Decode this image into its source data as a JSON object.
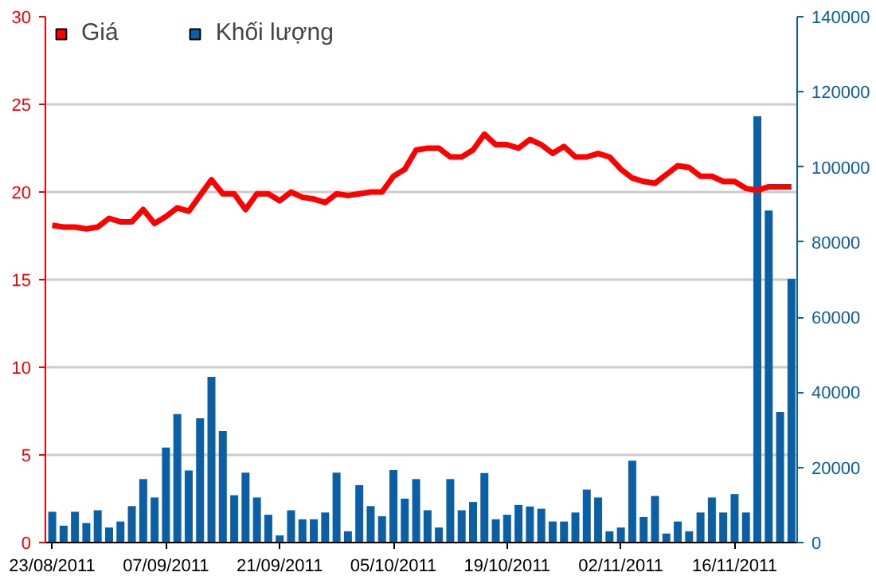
{
  "chart_data": {
    "type": "bar",
    "categories": [
      "23/08/2011",
      null,
      null,
      null,
      null,
      null,
      null,
      null,
      null,
      null,
      "07/09/2011",
      null,
      null,
      null,
      null,
      null,
      null,
      null,
      null,
      null,
      "21/09/2011",
      null,
      null,
      null,
      null,
      null,
      null,
      null,
      null,
      null,
      "05/10/2011",
      null,
      null,
      null,
      null,
      null,
      null,
      null,
      null,
      null,
      "19/10/2011",
      null,
      null,
      null,
      null,
      null,
      null,
      null,
      null,
      null,
      "02/11/2011",
      null,
      null,
      null,
      null,
      null,
      null,
      null,
      null,
      null,
      "16/11/2011",
      null,
      null,
      null,
      null,
      null
    ],
    "series": [
      {
        "name": "Giá",
        "type": "line",
        "axis": "y",
        "color": "#ff0000",
        "values": [
          18.1,
          18.0,
          18.0,
          17.9,
          18.0,
          18.5,
          18.3,
          18.3,
          19.0,
          18.2,
          18.6,
          19.1,
          18.9,
          19.8,
          20.7,
          19.9,
          19.9,
          19.0,
          19.9,
          19.9,
          19.5,
          20.0,
          19.7,
          19.6,
          19.4,
          19.9,
          19.8,
          19.9,
          20.0,
          20.0,
          20.9,
          21.3,
          22.4,
          22.5,
          22.5,
          22.0,
          22.0,
          22.4,
          23.3,
          22.7,
          22.7,
          22.5,
          23.0,
          22.7,
          22.2,
          22.6,
          22.0,
          22.0,
          22.2,
          22.0,
          21.3,
          20.8,
          20.6,
          20.5,
          21.0,
          21.5,
          21.4,
          20.9,
          20.9,
          20.6,
          20.6,
          20.2,
          20.1,
          20.3,
          20.3,
          20.3
        ]
      },
      {
        "name": "Khối lượng",
        "axis": "y2",
        "color": "#0b5fa5",
        "values": [
          8200,
          4500,
          8200,
          5200,
          8600,
          4000,
          5600,
          9700,
          16900,
          12000,
          25300,
          34200,
          19200,
          33100,
          44100,
          29700,
          12600,
          18600,
          12000,
          7400,
          1900,
          8600,
          6200,
          6200,
          8000,
          18600,
          3000,
          15300,
          9700,
          7000,
          19300,
          11700,
          16900,
          8600,
          4000,
          16900,
          8600,
          10800,
          18500,
          6200,
          7400,
          10000,
          9600,
          9000,
          5600,
          5600,
          8000,
          14100,
          12000,
          3000,
          4000,
          21800,
          6800,
          12400,
          2400,
          5600,
          3000,
          8000,
          12000,
          8000,
          12900,
          8000,
          113500,
          88400,
          34800,
          70200
        ]
      }
    ],
    "ylim": [
      0,
      30
    ],
    "yticks": [
      0,
      5,
      10,
      15,
      20,
      25,
      30
    ],
    "y2lim": [
      0,
      140000
    ],
    "y2ticks": [
      0,
      20000,
      40000,
      60000,
      80000,
      100000,
      120000,
      140000
    ],
    "grid": "y",
    "legend": "top left"
  }
}
